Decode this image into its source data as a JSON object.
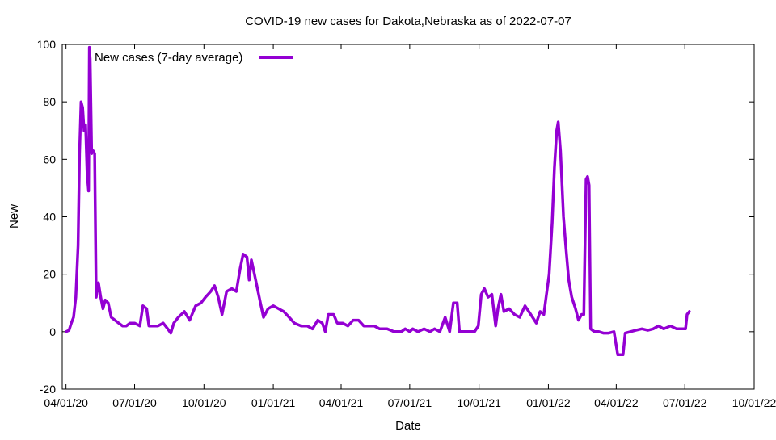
{
  "chart_data": {
    "type": "line",
    "title": "COVID-19 new cases for Dakota,Nebraska as of 2022-07-07",
    "xlabel": "Date",
    "ylabel": "New",
    "xlim": [
      "2020-03-27",
      "2022-10-01"
    ],
    "ylim": [
      -20,
      100
    ],
    "x_ticks": [
      {
        "date": "2020-04-01",
        "label": "04/01/20"
      },
      {
        "date": "2020-07-01",
        "label": "07/01/20"
      },
      {
        "date": "2020-10-01",
        "label": "10/01/20"
      },
      {
        "date": "2021-01-01",
        "label": "01/01/21"
      },
      {
        "date": "2021-04-01",
        "label": "04/01/21"
      },
      {
        "date": "2021-07-01",
        "label": "07/01/21"
      },
      {
        "date": "2021-10-01",
        "label": "10/01/21"
      },
      {
        "date": "2022-01-01",
        "label": "01/01/22"
      },
      {
        "date": "2022-04-01",
        "label": "04/01/22"
      },
      {
        "date": "2022-07-01",
        "label": "07/01/22"
      },
      {
        "date": "2022-10-01",
        "label": "10/01/22"
      }
    ],
    "y_ticks": [
      -20,
      0,
      20,
      40,
      60,
      80,
      100
    ],
    "grid": false,
    "legend_position": "top-left",
    "series": [
      {
        "name": "New cases (7-day average)",
        "color": "#9400d3",
        "points": [
          [
            "2020-04-01",
            0
          ],
          [
            "2020-04-05",
            0.5
          ],
          [
            "2020-04-08",
            3
          ],
          [
            "2020-04-11",
            5
          ],
          [
            "2020-04-14",
            12
          ],
          [
            "2020-04-17",
            30
          ],
          [
            "2020-04-19",
            62
          ],
          [
            "2020-04-21",
            80
          ],
          [
            "2020-04-23",
            78
          ],
          [
            "2020-04-25",
            70
          ],
          [
            "2020-04-27",
            72
          ],
          [
            "2020-04-29",
            55
          ],
          [
            "2020-05-01",
            49
          ],
          [
            "2020-05-02",
            99
          ],
          [
            "2020-05-03",
            95
          ],
          [
            "2020-05-05",
            62
          ],
          [
            "2020-05-07",
            63
          ],
          [
            "2020-05-09",
            62
          ],
          [
            "2020-05-11",
            12
          ],
          [
            "2020-05-14",
            17
          ],
          [
            "2020-05-17",
            12
          ],
          [
            "2020-05-20",
            8
          ],
          [
            "2020-05-23",
            11
          ],
          [
            "2020-05-27",
            10
          ],
          [
            "2020-05-31",
            5
          ],
          [
            "2020-06-05",
            4
          ],
          [
            "2020-06-10",
            3
          ],
          [
            "2020-06-15",
            2
          ],
          [
            "2020-06-20",
            2
          ],
          [
            "2020-06-25",
            3
          ],
          [
            "2020-07-01",
            3
          ],
          [
            "2020-07-08",
            2
          ],
          [
            "2020-07-12",
            9
          ],
          [
            "2020-07-17",
            8
          ],
          [
            "2020-07-20",
            2
          ],
          [
            "2020-07-25",
            2
          ],
          [
            "2020-08-01",
            2
          ],
          [
            "2020-08-08",
            3
          ],
          [
            "2020-08-14",
            1
          ],
          [
            "2020-08-18",
            -0.5
          ],
          [
            "2020-08-22",
            3
          ],
          [
            "2020-08-28",
            5
          ],
          [
            "2020-09-05",
            7
          ],
          [
            "2020-09-12",
            4
          ],
          [
            "2020-09-20",
            9
          ],
          [
            "2020-09-27",
            10
          ],
          [
            "2020-10-03",
            12
          ],
          [
            "2020-10-10",
            14
          ],
          [
            "2020-10-15",
            16
          ],
          [
            "2020-10-20",
            12
          ],
          [
            "2020-10-25",
            6
          ],
          [
            "2020-10-31",
            14
          ],
          [
            "2020-11-07",
            15
          ],
          [
            "2020-11-13",
            14
          ],
          [
            "2020-11-18",
            22
          ],
          [
            "2020-11-22",
            27
          ],
          [
            "2020-11-27",
            26
          ],
          [
            "2020-11-30",
            18
          ],
          [
            "2020-12-03",
            25
          ],
          [
            "2020-12-07",
            20
          ],
          [
            "2020-12-11",
            15
          ],
          [
            "2020-12-15",
            10
          ],
          [
            "2020-12-19",
            5
          ],
          [
            "2020-12-25",
            8
          ],
          [
            "2021-01-01",
            9
          ],
          [
            "2021-01-08",
            8
          ],
          [
            "2021-01-15",
            7
          ],
          [
            "2021-01-22",
            5
          ],
          [
            "2021-01-29",
            3
          ],
          [
            "2021-02-07",
            2
          ],
          [
            "2021-02-15",
            2
          ],
          [
            "2021-02-22",
            1
          ],
          [
            "2021-03-01",
            4
          ],
          [
            "2021-03-07",
            3
          ],
          [
            "2021-03-11",
            0
          ],
          [
            "2021-03-15",
            6
          ],
          [
            "2021-03-22",
            6
          ],
          [
            "2021-03-27",
            3
          ],
          [
            "2021-04-03",
            3
          ],
          [
            "2021-04-10",
            2
          ],
          [
            "2021-04-17",
            4
          ],
          [
            "2021-04-24",
            4
          ],
          [
            "2021-05-01",
            2
          ],
          [
            "2021-05-15",
            2
          ],
          [
            "2021-05-22",
            1
          ],
          [
            "2021-06-01",
            1
          ],
          [
            "2021-06-10",
            0
          ],
          [
            "2021-06-20",
            0
          ],
          [
            "2021-06-25",
            1
          ],
          [
            "2021-07-01",
            0
          ],
          [
            "2021-07-05",
            1
          ],
          [
            "2021-07-12",
            0
          ],
          [
            "2021-07-20",
            1
          ],
          [
            "2021-07-28",
            0
          ],
          [
            "2021-08-03",
            1
          ],
          [
            "2021-08-10",
            0
          ],
          [
            "2021-08-17",
            5
          ],
          [
            "2021-08-23",
            0
          ],
          [
            "2021-08-28",
            10
          ],
          [
            "2021-09-02",
            10
          ],
          [
            "2021-09-05",
            0
          ],
          [
            "2021-09-15",
            0
          ],
          [
            "2021-09-25",
            0
          ],
          [
            "2021-09-30",
            2
          ],
          [
            "2021-10-04",
            13
          ],
          [
            "2021-10-08",
            15
          ],
          [
            "2021-10-13",
            12
          ],
          [
            "2021-10-18",
            13
          ],
          [
            "2021-10-23",
            2
          ],
          [
            "2021-10-26",
            8
          ],
          [
            "2021-10-30",
            13
          ],
          [
            "2021-11-03",
            7
          ],
          [
            "2021-11-10",
            8
          ],
          [
            "2021-11-17",
            6
          ],
          [
            "2021-11-24",
            5
          ],
          [
            "2021-12-01",
            9
          ],
          [
            "2021-12-06",
            7
          ],
          [
            "2021-12-11",
            5
          ],
          [
            "2021-12-16",
            3
          ],
          [
            "2021-12-21",
            7
          ],
          [
            "2021-12-26",
            6
          ],
          [
            "2021-12-29",
            12
          ],
          [
            "2022-01-02",
            20
          ],
          [
            "2022-01-06",
            38
          ],
          [
            "2022-01-09",
            57
          ],
          [
            "2022-01-12",
            70
          ],
          [
            "2022-01-14",
            73
          ],
          [
            "2022-01-17",
            63
          ],
          [
            "2022-01-21",
            40
          ],
          [
            "2022-01-24",
            30
          ],
          [
            "2022-01-28",
            18
          ],
          [
            "2022-02-01",
            12
          ],
          [
            "2022-02-06",
            8
          ],
          [
            "2022-02-10",
            4
          ],
          [
            "2022-02-14",
            6
          ],
          [
            "2022-02-17",
            6
          ],
          [
            "2022-02-20",
            53
          ],
          [
            "2022-02-22",
            54
          ],
          [
            "2022-02-24",
            51
          ],
          [
            "2022-02-26",
            1
          ],
          [
            "2022-03-03",
            0
          ],
          [
            "2022-03-09",
            0
          ],
          [
            "2022-03-15",
            -0.5
          ],
          [
            "2022-03-22",
            -0.5
          ],
          [
            "2022-03-29",
            0
          ],
          [
            "2022-04-03",
            -8
          ],
          [
            "2022-04-10",
            -8
          ],
          [
            "2022-04-13",
            -0.5
          ],
          [
            "2022-04-20",
            0
          ],
          [
            "2022-04-27",
            0.5
          ],
          [
            "2022-05-05",
            1
          ],
          [
            "2022-05-13",
            0.5
          ],
          [
            "2022-05-20",
            1
          ],
          [
            "2022-05-27",
            2
          ],
          [
            "2022-06-03",
            1
          ],
          [
            "2022-06-12",
            2
          ],
          [
            "2022-06-20",
            1
          ],
          [
            "2022-06-27",
            1
          ],
          [
            "2022-07-02",
            1
          ],
          [
            "2022-07-04",
            6
          ],
          [
            "2022-07-07",
            7
          ]
        ]
      }
    ]
  }
}
